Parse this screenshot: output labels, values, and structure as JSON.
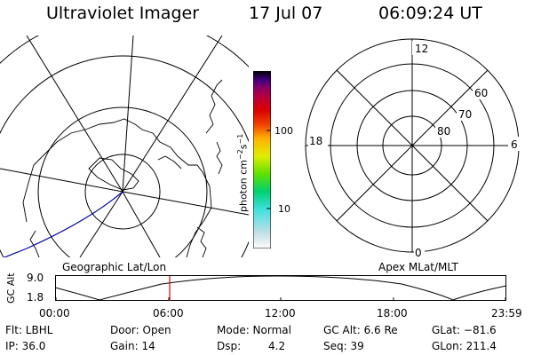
{
  "header": {
    "title": "Ultraviolet Imager",
    "date": "17 Jul 07",
    "time": "06:09:24 UT"
  },
  "colorbar": {
    "unit_label": "photon cm",
    "unit_sup1": "−2",
    "unit_mid": "s",
    "unit_sup2": "−1",
    "tick_100": "100",
    "tick_10": "10"
  },
  "polar_plot": {
    "mlt_top": "12",
    "mlt_left": "18",
    "mlt_right": "6",
    "mlt_bottom": "0",
    "lat_60": "60",
    "lat_70": "70",
    "lat_80": "80"
  },
  "panel_labels": {
    "left": "Geographic Lat/Lon",
    "right": "Apex MLat/MLT"
  },
  "altitude_plot": {
    "ylabel": "GC Alt",
    "y_max": "9.0",
    "y_min": "1.8",
    "x_ticks": [
      "00:00",
      "06:00",
      "12:00",
      "18:00",
      "23:59"
    ]
  },
  "info": {
    "flt": "Flt: LBHL",
    "ip": "IP: 36.0",
    "door": "Door: Open",
    "gain": "Gain: 14",
    "mode": "Mode: Normal",
    "dsp_label": "Dsp:",
    "dsp_value": "4.2",
    "gc_alt": "GC Alt: 6.6 Re",
    "seq": "Seq: 39",
    "glat": "GLat: −81.6",
    "glon": "GLon: 211.4"
  },
  "colors": {
    "colorbar_stops": [
      "#ffffff",
      "#c8e0e8",
      "#40e0e0",
      "#00d070",
      "#60e000",
      "#e0ee00",
      "#ffb000",
      "#f04000",
      "#d80000",
      "#c00030",
      "#900060",
      "#400080",
      "#000000"
    ],
    "orbit_track": "#0000a0",
    "time_marker": "#e00000"
  }
}
